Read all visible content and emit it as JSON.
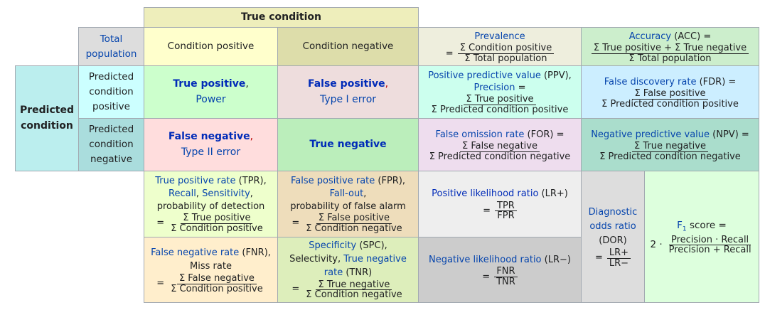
{
  "true_condition": "True condition",
  "predicted_condition": "Predicted condition",
  "total_population": "Total population",
  "condition_positive": "Condition positive",
  "condition_negative": "Condition negative",
  "predicted_condition_positive": "Predicted condition positive",
  "predicted_condition_negative": "Predicted condition negative",
  "prevalence": {
    "label": "Prevalence",
    "eq": "=",
    "num": "Σ Condition positive",
    "den": "Σ Total population"
  },
  "accuracy": {
    "label": "Accuracy",
    "abbr": " (ACC) =",
    "num": "Σ True positive + Σ True negative",
    "den": "Σ Total population"
  },
  "true_positive": {
    "label": "True positive",
    "comma": ",",
    "sub": "Power"
  },
  "false_positive": {
    "label": "False positive",
    "comma": ",",
    "sub": "Type I error"
  },
  "false_negative": {
    "label": "False negative",
    "comma": ",",
    "sub": "Type II error"
  },
  "true_negative": {
    "label": "True negative"
  },
  "ppv": {
    "label": "Positive predictive value",
    "abbr": " (PPV),",
    "label2": "Precision",
    "eq2": " =",
    "num": "Σ True positive",
    "den": "Σ Predicted condition positive"
  },
  "fdr": {
    "label": "False discovery rate",
    "abbr": " (FDR) =",
    "num": "Σ False positive",
    "den": "Σ Predicted condition positive"
  },
  "for": {
    "label": "False omission rate",
    "abbr": " (FOR) =",
    "num": "Σ False negative",
    "den": "Σ Predicted condition negative"
  },
  "npv": {
    "label": "Negative predictive value",
    "abbr": " (NPV) =",
    "num": "Σ True negative",
    "den": "Σ Predicted condition negative"
  },
  "tpr": {
    "label": "True positive rate",
    "abbr": " (TPR),",
    "recall": "Recall",
    "sep": ", ",
    "sensitivity": "Sensitivity",
    "comma": ",",
    "prob": "probability of detection",
    "eq": "=",
    "num": "Σ True positive",
    "den": "Σ Condition positive"
  },
  "fpr": {
    "label": "False positive rate",
    "abbr": " (FPR),",
    "fallout": "Fall-out",
    "comma": ",",
    "prob": "probability of false alarm",
    "eq": "=",
    "num": "Σ False positive",
    "den": "Σ Condition negative"
  },
  "fnr": {
    "label": "False negative rate",
    "abbr": " (FNR),",
    "miss": "Miss rate",
    "eq": "=",
    "num": "Σ False negative",
    "den": "Σ Condition positive"
  },
  "spc": {
    "label": "Specificity",
    "abbr": " (SPC),",
    "selectivity": "Selectivity, ",
    "tnr_label": "True negative rate",
    "tnr_abbr": " (TNR)",
    "eq": "=",
    "num": "Σ True negative",
    "den": "Σ Condition negative"
  },
  "lrp": {
    "label": "Positive likelihood ratio",
    "abbr": " (LR+)",
    "eq": "=",
    "num": "TPR",
    "den": "FPR"
  },
  "lrn": {
    "label": "Negative likelihood ratio",
    "abbr": " (LR−)",
    "eq": "=",
    "num": "FNR",
    "den": "TNR"
  },
  "dor": {
    "label1": "Diagnostic",
    "label2": "odds ratio",
    "abbr": "(DOR)",
    "eq": "=",
    "num": "LR+",
    "den": "LR−"
  },
  "f1": {
    "label": "F",
    "sub": "1",
    "suffix": " score =",
    "prefix": "2 ·",
    "num": "Precision · Recall",
    "den": "Precision + Recall"
  },
  "colors": {
    "header": "#eeeebb",
    "total": "#dddddd",
    "cond_pos": "#ffffcc",
    "cond_neg": "#ddddaa",
    "pred_label": "#bbeeee",
    "pred_pos": "#ccffff",
    "pred_neg": "#aadddd",
    "tp": "#ccffcc",
    "fp": "#eedddd",
    "fn": "#ffdddd",
    "tn": "#bbeebb",
    "prevalence": "#eeeedd",
    "accuracy": "#cceecc",
    "ppv": "#ccffee",
    "fdr": "#cceeff",
    "for": "#eeddee",
    "npv": "#aaddcc",
    "tpr": "#eeffcc",
    "fpr": "#eeddbb",
    "fnr": "#ffeecc",
    "spc": "#ddeebb",
    "lrp": "#eeeeee",
    "lrn": "#cccccc",
    "dor": "#dddddd",
    "f1": "#ddffdd"
  }
}
